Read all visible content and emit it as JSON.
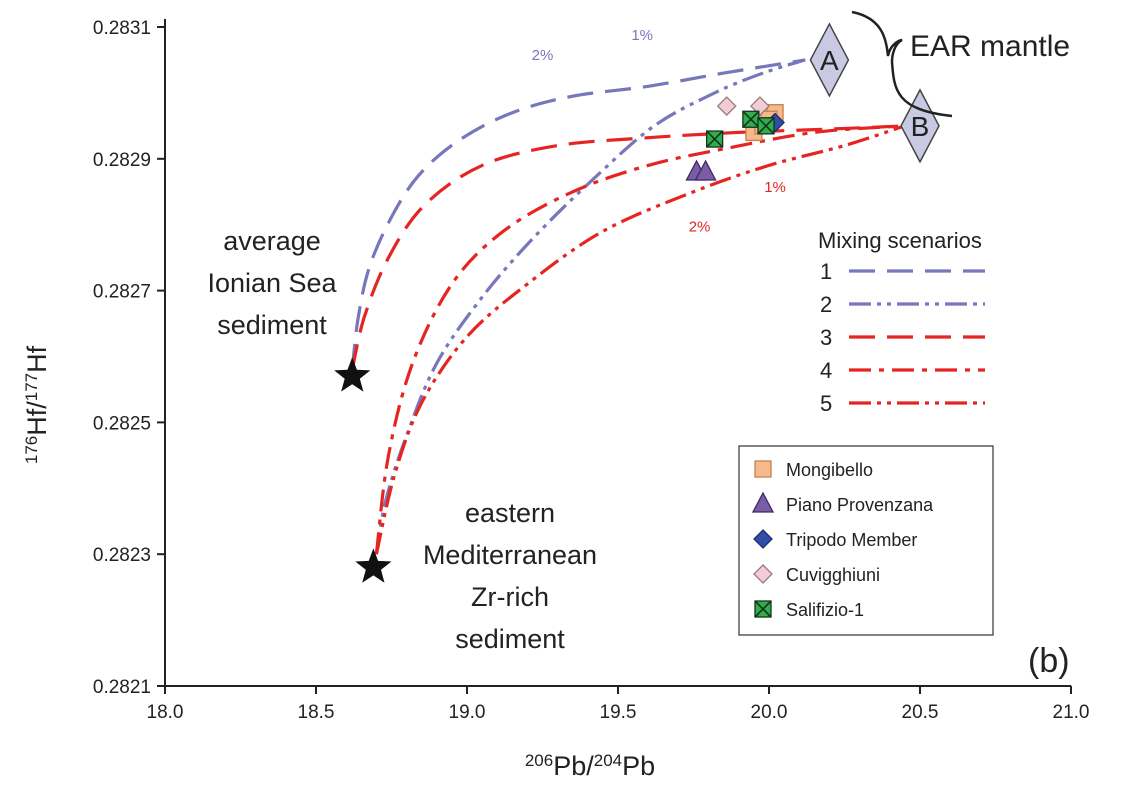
{
  "chart_data": {
    "type": "scatter",
    "xlabel": "206Pb/204Pb",
    "ylabel": "176Hf/177Hf",
    "xlim": [
      18.0,
      21.0
    ],
    "ylim": [
      0.2821,
      0.2831
    ],
    "x_ticks": [
      "18.0",
      "18.5",
      "19.0",
      "19.5",
      "20.0",
      "20.5",
      "21.0"
    ],
    "y_ticks": [
      "0.2821",
      "0.2823",
      "0.2825",
      "0.2827",
      "0.2829",
      "0.2831"
    ],
    "panel_label": "(b)",
    "grid": false,
    "endmembers": [
      {
        "id": "A",
        "label": "A",
        "x": 20.2,
        "y": 0.28305
      },
      {
        "id": "B",
        "label": "B",
        "x": 20.5,
        "y": 0.28295
      }
    ],
    "mantle_label": "EAR mantle",
    "sediments": [
      {
        "id": "ionian",
        "label_lines": [
          "average",
          "Ionian Sea",
          "sediment"
        ],
        "x": 18.62,
        "y": 0.28257
      },
      {
        "id": "eastern",
        "label_lines": [
          "eastern",
          "Mediterranean",
          "Zr-rich",
          "sediment"
        ],
        "x": 18.69,
        "y": 0.28228
      }
    ],
    "mixing_legend_title": "Mixing scenarios",
    "mixing_curves": [
      {
        "name": "1",
        "color": "#7777bb",
        "dash": "long",
        "points": [
          [
            18.62,
            0.28258
          ],
          [
            18.64,
            0.28266
          ],
          [
            18.68,
            0.28274
          ],
          [
            18.76,
            0.28282
          ],
          [
            18.85,
            0.28288
          ],
          [
            18.98,
            0.28293
          ],
          [
            19.15,
            0.28297
          ],
          [
            19.35,
            0.282995
          ],
          [
            19.6,
            0.28301
          ],
          [
            19.85,
            0.28303
          ],
          [
            20.12,
            0.28305
          ]
        ]
      },
      {
        "name": "2",
        "color": "#7777bb",
        "dash": "dashdotdot",
        "points": [
          [
            18.7,
            0.2823
          ],
          [
            18.73,
            0.28238
          ],
          [
            18.8,
            0.28248
          ],
          [
            18.9,
            0.28259
          ],
          [
            19.05,
            0.28269
          ],
          [
            19.22,
            0.28278
          ],
          [
            19.42,
            0.28287
          ],
          [
            19.62,
            0.28295
          ],
          [
            19.82,
            0.283
          ],
          [
            19.98,
            0.28303
          ],
          [
            20.12,
            0.28305
          ]
        ]
      },
      {
        "name": "3",
        "color": "#e52521",
        "dash": "long",
        "points": [
          [
            18.62,
            0.28258
          ],
          [
            18.66,
            0.28266
          ],
          [
            18.74,
            0.28275
          ],
          [
            18.86,
            0.28283
          ],
          [
            19.05,
            0.28289
          ],
          [
            19.3,
            0.28292
          ],
          [
            19.6,
            0.282932
          ],
          [
            19.9,
            0.28294
          ],
          [
            20.2,
            0.282945
          ],
          [
            20.45,
            0.28295
          ]
        ]
      },
      {
        "name": "4",
        "color": "#e52521",
        "dash": "dashdot",
        "points": [
          [
            18.7,
            0.2823
          ],
          [
            18.74,
            0.28245
          ],
          [
            18.82,
            0.28259
          ],
          [
            18.95,
            0.28271
          ],
          [
            19.12,
            0.28279
          ],
          [
            19.35,
            0.28285
          ],
          [
            19.6,
            0.28289
          ],
          [
            19.85,
            0.282915
          ],
          [
            20.15,
            0.28294
          ],
          [
            20.45,
            0.28295
          ]
        ]
      },
      {
        "name": "5",
        "color": "#e52521",
        "dash": "dashdotdot",
        "points": [
          [
            18.7,
            0.2823
          ],
          [
            18.76,
            0.28242
          ],
          [
            18.85,
            0.28253
          ],
          [
            19.0,
            0.28263
          ],
          [
            19.2,
            0.28271
          ],
          [
            19.45,
            0.28279
          ],
          [
            19.75,
            0.28285
          ],
          [
            20.0,
            0.28289
          ],
          [
            20.25,
            0.28292
          ],
          [
            20.45,
            0.28295
          ]
        ]
      }
    ],
    "percent_labels": [
      {
        "text": "2%",
        "x": 19.25,
        "y": 0.28305,
        "color": "#7777bb"
      },
      {
        "text": "1%",
        "x": 19.58,
        "y": 0.28308,
        "color": "#7777bb"
      },
      {
        "text": "1%",
        "x": 20.02,
        "y": 0.28285,
        "color": "#e52521"
      },
      {
        "text": "2%",
        "x": 19.77,
        "y": 0.28279,
        "color": "#e52521"
      }
    ],
    "series": [
      {
        "name": "Mongibello",
        "marker": "square",
        "fill": "#f5b98b",
        "stroke": "#c5824c",
        "points": [
          [
            19.95,
            0.28294
          ],
          [
            20.02,
            0.28297
          ],
          [
            20.0,
            0.28296
          ],
          [
            19.98,
            0.28295
          ]
        ]
      },
      {
        "name": "Piano Provenzana",
        "marker": "triangle",
        "fill": "#7b5ca6",
        "stroke": "#3d2a63",
        "points": [
          [
            19.76,
            0.28288
          ],
          [
            19.79,
            0.28288
          ]
        ]
      },
      {
        "name": "Tripodo Member",
        "marker": "diamond",
        "fill": "#2f4fa5",
        "stroke": "#1c2f6a",
        "points": [
          [
            20.02,
            0.282955
          ]
        ]
      },
      {
        "name": "Cuvigghiuni",
        "marker": "diamond",
        "fill": "#f3cdd6",
        "stroke": "#9a7882",
        "points": [
          [
            19.86,
            0.28298
          ],
          [
            19.97,
            0.28298
          ]
        ]
      },
      {
        "name": "Salifizio-1",
        "marker": "xsquare",
        "fill": "#2fae4a",
        "stroke": "#15331c",
        "points": [
          [
            19.82,
            0.28293
          ],
          [
            19.94,
            0.28296
          ],
          [
            19.99,
            0.28295
          ]
        ]
      }
    ]
  }
}
